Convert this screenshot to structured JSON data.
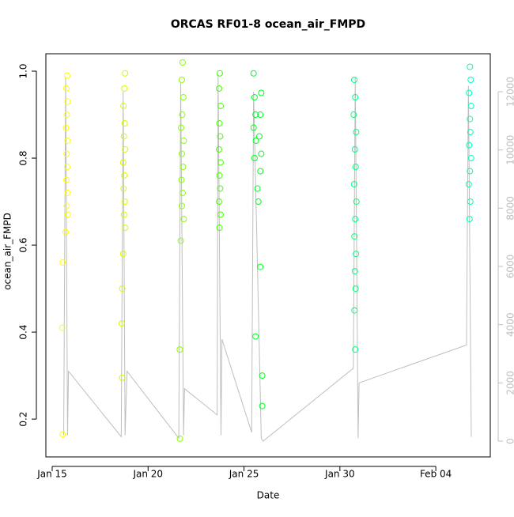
{
  "chart_data": {
    "type": "scatter",
    "title": "ORCAS RF01-8 ocean_air_FMPD",
    "x_label": "Date",
    "y_label": "ocean_air_FMPD",
    "xlim": [
      -0.33,
      22.84
    ],
    "xticks": [
      {
        "value": 0,
        "label": "Jan 15"
      },
      {
        "value": 5,
        "label": "Jan 20"
      },
      {
        "value": 10,
        "label": "Jan 25"
      },
      {
        "value": 15,
        "label": "Jan 30"
      },
      {
        "value": 20,
        "label": "Feb 04"
      }
    ],
    "ylim": [
      0.113,
      1.04
    ],
    "yticks": [
      0.2,
      0.4,
      0.6,
      {
        "value": 1,
        "label": "1.0"
      },
      0.8
    ],
    "y2lim": [
      -543,
      13304
    ],
    "y2ticks": [
      0,
      2000,
      4000,
      6000,
      8000,
      10000,
      12000
    ],
    "series": [
      {
        "color": "#ffff00",
        "x": [
          0.78,
          0.74,
          0.8,
          0.76,
          0.72,
          0.8,
          0.75,
          0.78,
          0.74,
          0.8,
          0.76,
          0.82,
          0.7,
          0.55,
          0.52,
          0.55
        ],
        "values": [
          0.99,
          0.96,
          0.93,
          0.9,
          0.87,
          0.84,
          0.81,
          0.78,
          0.75,
          0.72,
          0.69,
          0.67,
          0.63,
          0.56,
          0.41,
          0.165
        ]
      },
      {
        "color": "#ccff00",
        "x": [
          3.8,
          3.76,
          3.72,
          3.78,
          3.74,
          3.8,
          3.7,
          3.76,
          3.72,
          3.78,
          3.74,
          3.8,
          3.7,
          3.65,
          3.62,
          3.65
        ],
        "values": [
          0.995,
          0.96,
          0.92,
          0.88,
          0.85,
          0.82,
          0.79,
          0.76,
          0.73,
          0.7,
          0.67,
          0.64,
          0.58,
          0.5,
          0.42,
          0.295
        ]
      },
      {
        "color": "#88ff00",
        "x": [
          6.8,
          6.76,
          6.84,
          6.78,
          6.72,
          6.86,
          6.76,
          6.82,
          6.74,
          6.8,
          6.76,
          6.86,
          6.7,
          6.65,
          6.66
        ],
        "values": [
          1.02,
          0.98,
          0.94,
          0.9,
          0.87,
          0.84,
          0.81,
          0.78,
          0.75,
          0.72,
          0.69,
          0.66,
          0.61,
          0.36,
          0.155
        ]
      },
      {
        "color": "#44ff00",
        "x": [
          8.74,
          8.7,
          8.78,
          8.72,
          8.76,
          8.7,
          8.78,
          8.72,
          8.76,
          8.7,
          8.78,
          8.72
        ],
        "values": [
          0.995,
          0.96,
          0.92,
          0.88,
          0.85,
          0.82,
          0.79,
          0.76,
          0.73,
          0.7,
          0.67,
          0.64
        ]
      },
      {
        "color": "#00ff22",
        "x": [
          10.5,
          10.55,
          10.6,
          10.5,
          10.62,
          10.55,
          10.9,
          10.85,
          10.8,
          10.9,
          10.85,
          10.7,
          10.75,
          10.6,
          10.85,
          10.95,
          10.95
        ],
        "values": [
          0.995,
          0.94,
          0.9,
          0.87,
          0.84,
          0.8,
          0.95,
          0.9,
          0.85,
          0.81,
          0.77,
          0.73,
          0.7,
          0.39,
          0.55,
          0.3,
          0.23
        ]
      },
      {
        "color": "#00ff80",
        "x": [
          15.75,
          15.8,
          15.72,
          15.85,
          15.78,
          15.82,
          15.74,
          15.86,
          15.8,
          15.76,
          15.84,
          15.78,
          15.82,
          15.76,
          15.8
        ],
        "values": [
          0.98,
          0.94,
          0.9,
          0.86,
          0.82,
          0.78,
          0.74,
          0.7,
          0.66,
          0.62,
          0.58,
          0.54,
          0.5,
          0.45,
          0.36
        ]
      },
      {
        "color": "#00ffbb",
        "x": [
          21.78,
          21.82,
          21.74,
          21.84,
          21.78,
          21.8,
          21.74,
          21.84,
          21.78,
          21.72,
          21.8,
          21.76
        ],
        "values": [
          1.01,
          0.98,
          0.95,
          0.92,
          0.89,
          0.86,
          0.83,
          0.8,
          0.77,
          0.74,
          0.7,
          0.66
        ]
      },
      {
        "type": "line",
        "axis": "y2",
        "color": "#bebebe",
        "x": [
          0.6,
          0.7,
          0.8,
          0.85,
          3.6,
          3.7,
          3.8,
          3.9,
          6.6,
          6.7,
          6.85,
          6.9,
          8.6,
          8.65,
          8.8,
          8.85,
          10.4,
          10.5,
          10.9,
          11.0,
          15.7,
          15.8,
          15.95,
          16.0,
          21.6,
          21.7,
          21.85
        ],
        "values": [
          200,
          12500,
          200,
          2400,
          150,
          12000,
          200,
          2400,
          100,
          12300,
          200,
          1800,
          900,
          12600,
          200,
          3500,
          300,
          12000,
          100,
          0,
          2500,
          12500,
          100,
          2000,
          3300,
          12200,
          150
        ]
      }
    ]
  }
}
